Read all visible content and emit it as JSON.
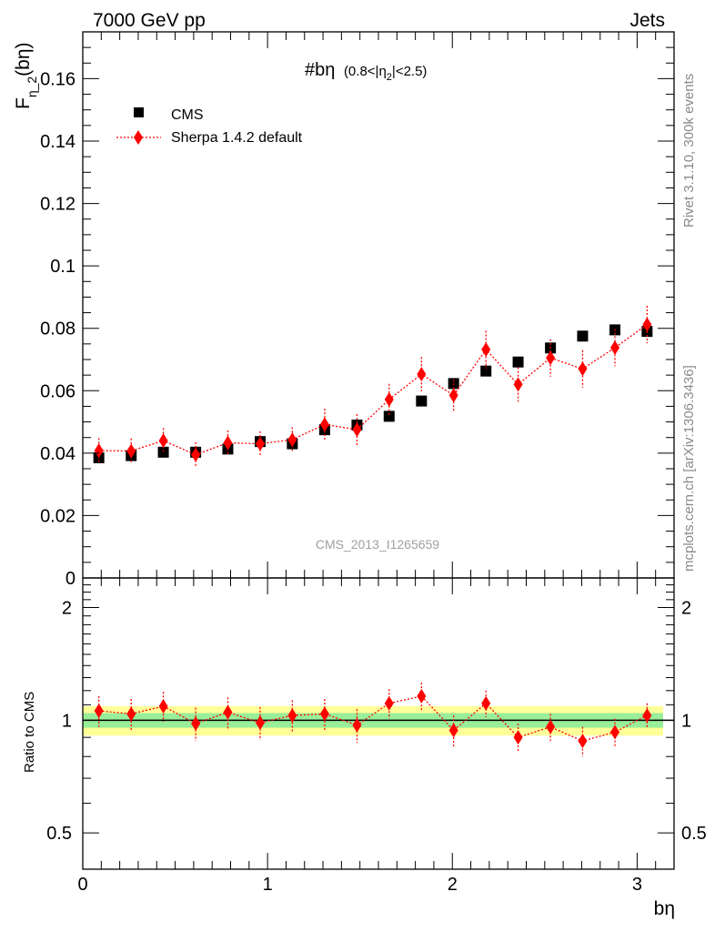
{
  "header": {
    "left": "7000 GeV pp",
    "right": "Jets",
    "side_top": "Rivet 3.1.10,  300k events",
    "side_bottom": "mcplots.cern.ch [arXiv:1306.3436]",
    "watermark": "CMS_2013_I1265659"
  },
  "chart_data": [
    {
      "type": "scatter",
      "panel": "main",
      "title_main": "#bη",
      "title_sub": "(0.8<|η",
      "title_sub_index": "2",
      "title_sub_end": "|<2.5)",
      "ylabel_main": "F",
      "ylabel_sub": "η_2",
      "ylabel_end": "(bη)",
      "xlim": [
        0,
        3.2
      ],
      "ylim": [
        0,
        0.175
      ],
      "y_ticks": [
        0,
        0.02,
        0.04,
        0.06,
        0.08,
        0.1,
        0.12,
        0.14,
        0.16
      ],
      "y_tick_labels": [
        "0",
        "0.02",
        "0.04",
        "0.06",
        "0.08",
        "0.1",
        "0.12",
        "0.14",
        "0.16"
      ],
      "legend_position": "top-left",
      "series": [
        {
          "name": "CMS",
          "color": "#000000",
          "marker": "square",
          "x": [
            0.087,
            0.262,
            0.436,
            0.611,
            0.785,
            0.96,
            1.134,
            1.309,
            1.484,
            1.658,
            1.833,
            2.007,
            2.182,
            2.356,
            2.531,
            2.705,
            2.88,
            3.054
          ],
          "y": [
            0.0385,
            0.0392,
            0.0403,
            0.0403,
            0.0413,
            0.0437,
            0.043,
            0.0475,
            0.049,
            0.0518,
            0.0567,
            0.0623,
            0.0663,
            0.0692,
            0.0737,
            0.0775,
            0.0795,
            0.079
          ]
        },
        {
          "name": "Sherpa 1.4.2 default",
          "color": "#ff0000",
          "marker": "diamond",
          "line": "dotted",
          "x": [
            0.087,
            0.262,
            0.436,
            0.611,
            0.785,
            0.96,
            1.134,
            1.309,
            1.484,
            1.658,
            1.833,
            2.007,
            2.182,
            2.356,
            2.531,
            2.705,
            2.88,
            3.054
          ],
          "y": [
            0.0408,
            0.0407,
            0.044,
            0.0395,
            0.0433,
            0.043,
            0.0443,
            0.0492,
            0.0475,
            0.0572,
            0.0653,
            0.0585,
            0.0732,
            0.062,
            0.0705,
            0.067,
            0.0738,
            0.0812
          ],
          "err": [
            0.004,
            0.004,
            0.004,
            0.004,
            0.004,
            0.004,
            0.004,
            0.005,
            0.005,
            0.005,
            0.0055,
            0.005,
            0.006,
            0.0055,
            0.006,
            0.006,
            0.006,
            0.006
          ]
        }
      ]
    },
    {
      "type": "scatter",
      "panel": "ratio",
      "ylabel": "Ratio to CMS",
      "xlabel": "bη",
      "xlim": [
        0,
        3.2
      ],
      "ylim_log": [
        0.4,
        2.4
      ],
      "y_ticks": [
        0.5,
        1,
        2
      ],
      "y_tick_labels": [
        "0.5",
        "1",
        "2"
      ],
      "x_ticks": [
        0,
        1,
        2,
        3
      ],
      "x_tick_labels": [
        "0",
        "1",
        "2",
        "3"
      ],
      "band_yellow_halfwidth": 0.09,
      "band_green_halfwidth": 0.045,
      "series": [
        {
          "name": "Sherpa 1.4.2 default",
          "color": "#ff0000",
          "x": [
            0.087,
            0.262,
            0.436,
            0.611,
            0.785,
            0.96,
            1.134,
            1.309,
            1.484,
            1.658,
            1.833,
            2.007,
            2.182,
            2.356,
            2.531,
            2.705,
            2.88,
            3.054
          ],
          "y": [
            1.06,
            1.04,
            1.09,
            0.98,
            1.05,
            0.985,
            1.03,
            1.04,
            0.97,
            1.11,
            1.16,
            0.94,
            1.11,
            0.9,
            0.96,
            0.88,
            0.93,
            1.03
          ],
          "err": [
            0.1,
            0.1,
            0.1,
            0.1,
            0.1,
            0.1,
            0.1,
            0.1,
            0.1,
            0.1,
            0.1,
            0.09,
            0.09,
            0.08,
            0.08,
            0.08,
            0.08,
            0.08
          ]
        }
      ]
    }
  ]
}
